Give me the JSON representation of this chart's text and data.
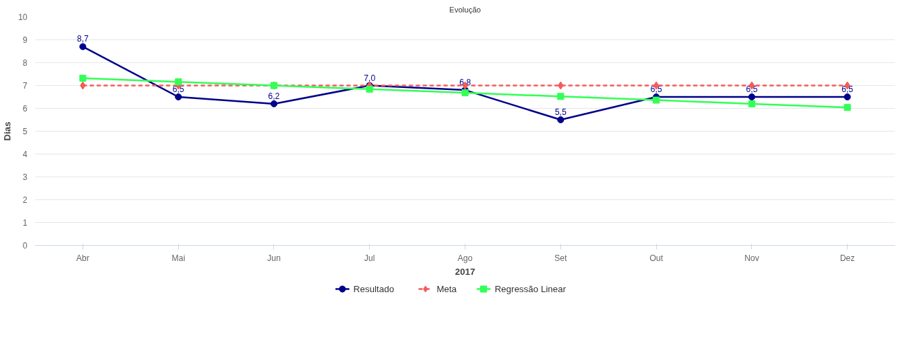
{
  "chart_data": {
    "type": "line",
    "title": "Evolução",
    "xlabel": "2017",
    "ylabel": "Dias",
    "categories": [
      "Abr",
      "Mai",
      "Jun",
      "Jul",
      "Ago",
      "Set",
      "Out",
      "Nov",
      "Dez"
    ],
    "series": [
      {
        "name": "Resultado",
        "color": "#00008b",
        "marker": "circle",
        "line_style": "solid",
        "values": [
          8.7,
          6.5,
          6.2,
          7.0,
          6.8,
          5.5,
          6.5,
          6.5,
          6.5
        ],
        "value_labels": [
          "8,7",
          "6,5",
          "6,2",
          "7,0",
          "6,8",
          "5,5",
          "6,5",
          "6,5",
          "6,5"
        ]
      },
      {
        "name": "Meta",
        "color": "#f45b5b",
        "marker": "diamond",
        "line_style": "dashed",
        "values": [
          7,
          7,
          7,
          7,
          7,
          7,
          7,
          7,
          7
        ]
      },
      {
        "name": "Regressão Linear",
        "color": "#33ff55",
        "marker": "square",
        "line_style": "solid",
        "values": [
          7.32,
          7.16,
          7.0,
          6.84,
          6.68,
          6.52,
          6.36,
          6.2,
          6.04
        ]
      }
    ],
    "ylim": [
      0,
      10
    ],
    "yticks": [
      0,
      1,
      2,
      3,
      4,
      5,
      6,
      7,
      8,
      9,
      10
    ],
    "grid": "y",
    "legend": "bottom"
  }
}
